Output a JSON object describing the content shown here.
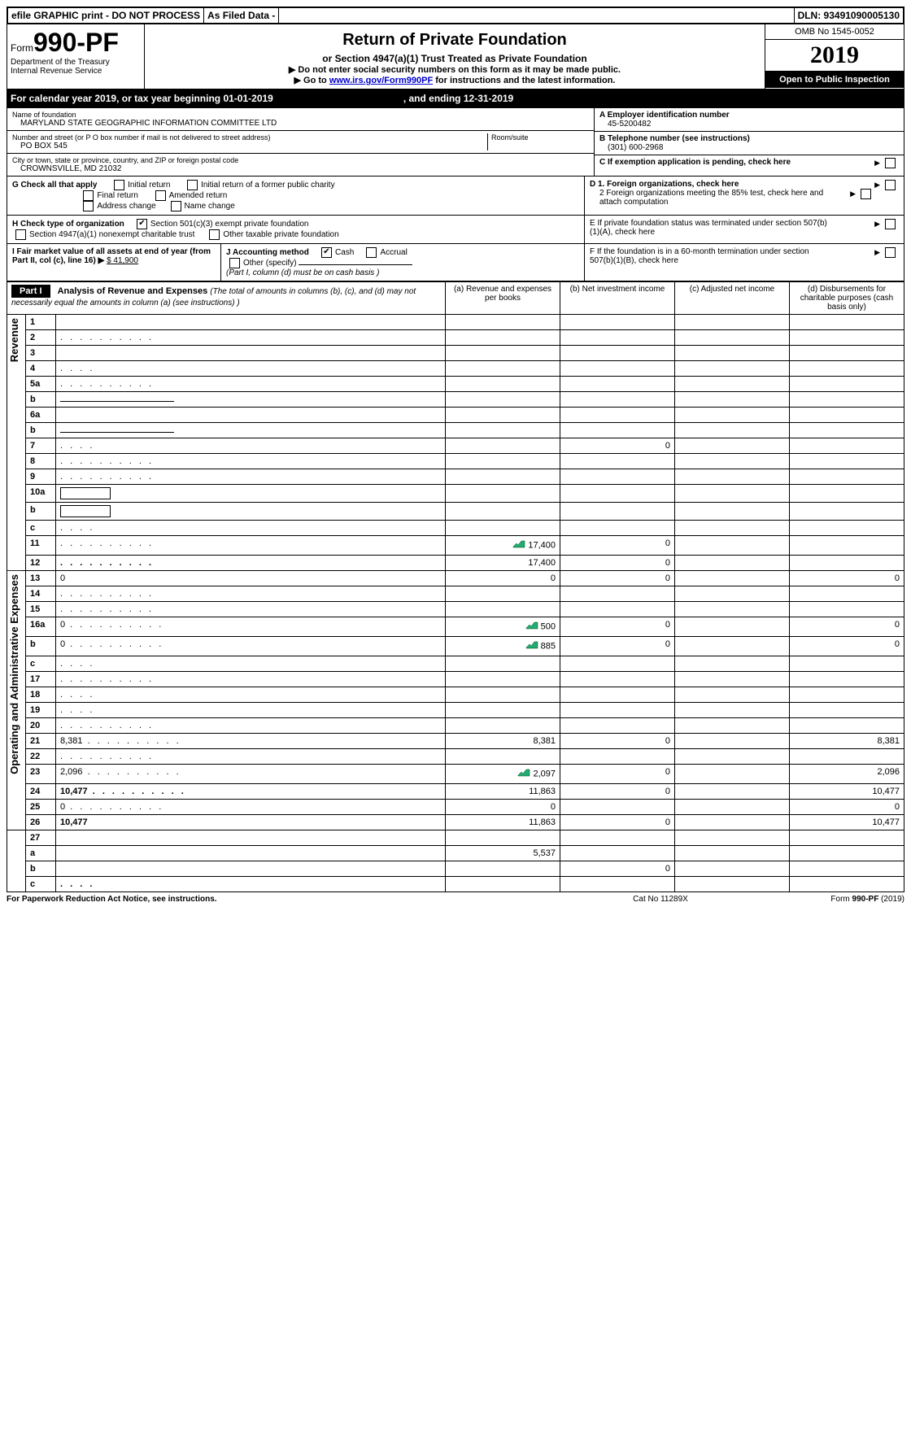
{
  "top": {
    "efile": "efile GRAPHIC print - DO NOT PROCESS",
    "asFiled": "As Filed Data -",
    "dln": "DLN: 93491090005130"
  },
  "header": {
    "formPrefix": "Form",
    "formNum": "990-PF",
    "dept": "Department of the Treasury",
    "irs": "Internal Revenue Service",
    "title": "Return of Private Foundation",
    "subtitle": "or Section 4947(a)(1) Trust Treated as Private Foundation",
    "note1": "▶ Do not enter social security numbers on this form as it may be made public.",
    "note2_pre": "▶ Go to ",
    "note2_link": "www.irs.gov/Form990PF",
    "note2_post": " for instructions and the latest information.",
    "omb": "OMB No 1545-0052",
    "year": "2019",
    "open": "Open to Public Inspection"
  },
  "calendar": {
    "pre": "For calendar year 2019, or tax year beginning ",
    "begin": "01-01-2019",
    "mid": ", and ending ",
    "end": "12-31-2019"
  },
  "info": {
    "nameLabel": "Name of foundation",
    "name": "MARYLAND STATE GEOGRAPHIC INFORMATION COMMITTEE LTD",
    "addrLabel": "Number and street (or P O  box number if mail is not delivered to street address)",
    "addr": "PO BOX 545",
    "roomLabel": "Room/suite",
    "cityLabel": "City or town, state or province, country, and ZIP or foreign postal code",
    "city": "CROWNSVILLE, MD  21032",
    "einLabel": "A Employer identification number",
    "ein": "45-5200482",
    "telLabel": "B Telephone number (see instructions)",
    "tel": "(301) 600-2968",
    "cLabel": "C If exemption application is pending, check here"
  },
  "checks": {
    "gLabel": "G Check all that apply",
    "g1": "Initial return",
    "g2": "Initial return of a former public charity",
    "g3": "Final return",
    "g4": "Amended return",
    "g5": "Address change",
    "g6": "Name change",
    "d1": "D 1. Foreign organizations, check here",
    "d2": "2 Foreign organizations meeting the 85% test, check here and attach computation",
    "hLabel": "H Check type of organization",
    "h1": "Section 501(c)(3) exempt private foundation",
    "h2": "Section 4947(a)(1) nonexempt charitable trust",
    "h3": "Other taxable private foundation",
    "eLabel": "E  If private foundation status was terminated under section 507(b)(1)(A), check here",
    "iLabel": "I Fair market value of all assets at end of year (from Part II, col  (c), line 16) ▶",
    "iVal": "$  41,900",
    "jLabel": "J Accounting method",
    "j1": "Cash",
    "j2": "Accrual",
    "j3": "Other (specify)",
    "jNote": "(Part I, column (d) must be on cash basis )",
    "fLabel": "F  If the foundation is in a 60-month termination under section 507(b)(1)(B), check here"
  },
  "part1": {
    "label": "Part I",
    "title": "Analysis of Revenue and Expenses",
    "titleNote": "(The total of amounts in columns (b), (c), and (d) may not necessarily equal the amounts in column (a) (see instructions) )",
    "colA": "(a) Revenue and expenses per books",
    "colB": "(b) Net investment income",
    "colC": "(c) Adjusted net income",
    "colD": "(d) Disbursements for charitable purposes (cash basis only)",
    "revenueLabel": "Revenue",
    "expensesLabel": "Operating and Administrative Expenses"
  },
  "rows": [
    {
      "n": "1",
      "d": "",
      "a": "",
      "b": "",
      "c": ""
    },
    {
      "n": "2",
      "d": "",
      "a": "",
      "b": "",
      "c": "",
      "dots": true
    },
    {
      "n": "3",
      "d": "",
      "a": "",
      "b": "",
      "c": ""
    },
    {
      "n": "4",
      "d": "",
      "a": "",
      "b": "",
      "c": "",
      "dots": "short"
    },
    {
      "n": "5a",
      "d": "",
      "a": "",
      "b": "",
      "c": "",
      "dots": true
    },
    {
      "n": "b",
      "d": "",
      "a": "",
      "b": "",
      "c": "",
      "line": true
    },
    {
      "n": "6a",
      "d": "",
      "a": "",
      "b": "",
      "c": ""
    },
    {
      "n": "b",
      "d": "",
      "a": "",
      "b": "",
      "c": "",
      "line": true
    },
    {
      "n": "7",
      "d": "",
      "a": "",
      "b": "0",
      "c": "",
      "dots": "short"
    },
    {
      "n": "8",
      "d": "",
      "a": "",
      "b": "",
      "c": "",
      "dots": true
    },
    {
      "n": "9",
      "d": "",
      "a": "",
      "b": "",
      "c": "",
      "dots": true
    },
    {
      "n": "10a",
      "d": "",
      "a": "",
      "b": "",
      "c": "",
      "box": true
    },
    {
      "n": "b",
      "d": "",
      "a": "",
      "b": "",
      "c": "",
      "dots": "short",
      "box": true
    },
    {
      "n": "c",
      "d": "",
      "a": "",
      "b": "",
      "c": "",
      "dots": "short"
    },
    {
      "n": "11",
      "d": "",
      "a": "17,400",
      "b": "0",
      "c": "",
      "dots": true,
      "icon": true
    },
    {
      "n": "12",
      "d": "",
      "a": "17,400",
      "b": "0",
      "c": "",
      "dots": true,
      "bold": true
    }
  ],
  "expRows": [
    {
      "n": "13",
      "d": "0",
      "a": "0",
      "b": "0",
      "c": ""
    },
    {
      "n": "14",
      "d": "",
      "a": "",
      "b": "",
      "c": "",
      "dots": true
    },
    {
      "n": "15",
      "d": "",
      "a": "",
      "b": "",
      "c": "",
      "dots": true
    },
    {
      "n": "16a",
      "d": "0",
      "a": "500",
      "b": "0",
      "c": "",
      "dots": true,
      "icon": true
    },
    {
      "n": "b",
      "d": "0",
      "a": "885",
      "b": "0",
      "c": "",
      "dots": true,
      "icon": true
    },
    {
      "n": "c",
      "d": "",
      "a": "",
      "b": "",
      "c": "",
      "dots": "short"
    },
    {
      "n": "17",
      "d": "",
      "a": "",
      "b": "",
      "c": "",
      "dots": true
    },
    {
      "n": "18",
      "d": "",
      "a": "",
      "b": "",
      "c": "",
      "dots": "short"
    },
    {
      "n": "19",
      "d": "",
      "a": "",
      "b": "",
      "c": "",
      "dots": "short"
    },
    {
      "n": "20",
      "d": "",
      "a": "",
      "b": "",
      "c": "",
      "dots": true
    },
    {
      "n": "21",
      "d": "8,381",
      "a": "8,381",
      "b": "0",
      "c": "",
      "dots": true
    },
    {
      "n": "22",
      "d": "",
      "a": "",
      "b": "",
      "c": "",
      "dots": true
    },
    {
      "n": "23",
      "d": "2,096",
      "a": "2,097",
      "b": "0",
      "c": "",
      "dots": true,
      "icon": true
    },
    {
      "n": "24",
      "d": "10,477",
      "a": "11,863",
      "b": "0",
      "c": "",
      "dots": true,
      "bold": true
    },
    {
      "n": "25",
      "d": "0",
      "a": "0",
      "b": "",
      "c": "",
      "dots": true
    },
    {
      "n": "26",
      "d": "10,477",
      "a": "11,863",
      "b": "0",
      "c": "",
      "bold": true
    }
  ],
  "sumRows": [
    {
      "n": "27",
      "d": "",
      "a": "",
      "b": "",
      "c": ""
    },
    {
      "n": "a",
      "d": "",
      "a": "5,537",
      "b": "",
      "c": "",
      "bold": true
    },
    {
      "n": "b",
      "d": "",
      "a": "",
      "b": "0",
      "c": "",
      "bold": true
    },
    {
      "n": "c",
      "d": "",
      "a": "",
      "b": "",
      "c": "",
      "bold": true,
      "dots": "short"
    }
  ],
  "footer": {
    "left": "For Paperwork Reduction Act Notice, see instructions.",
    "mid": "Cat No 11289X",
    "right": "Form 990-PF (2019)"
  },
  "colors": {
    "black": "#000000",
    "white": "#ffffff",
    "link": "#0000cc"
  }
}
